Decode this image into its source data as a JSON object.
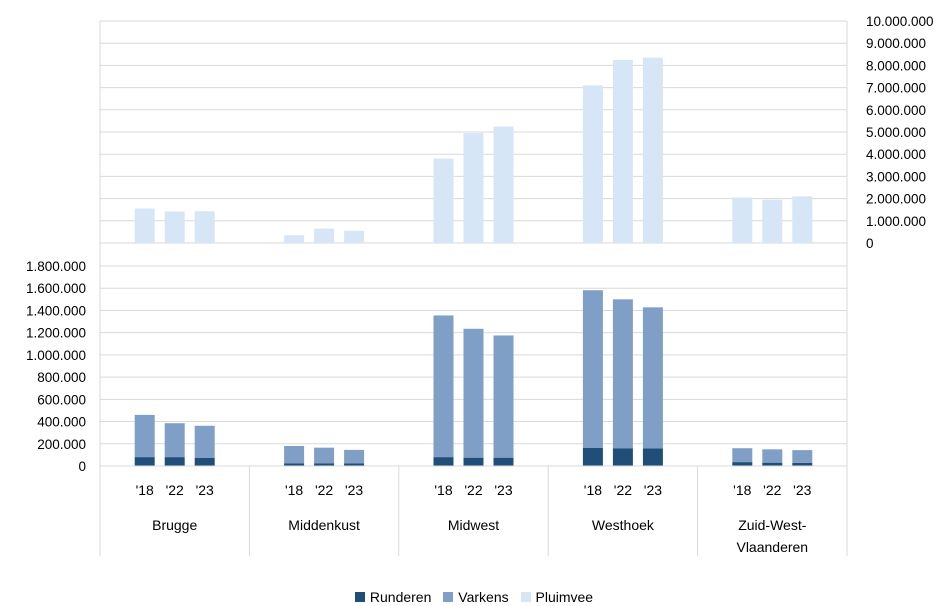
{
  "chart_data": {
    "type": "bar",
    "stacked": true,
    "groups": [
      "Brugge",
      "Middenkust",
      "Midwest",
      "Westhoek",
      "Zuid-West-Vlaanderen"
    ],
    "years": [
      "'18",
      "'22",
      "'23"
    ],
    "series": [
      {
        "name": "Runderen",
        "color": "#1F4E79",
        "axis": "left",
        "values": [
          [
            80000,
            80000,
            72000
          ],
          [
            25000,
            25000,
            23000
          ],
          [
            80000,
            75000,
            75000
          ],
          [
            162000,
            160000,
            158000
          ],
          [
            35000,
            30000,
            28000
          ]
        ]
      },
      {
        "name": "Varkens",
        "color": "#7F9FC7",
        "axis": "left",
        "values": [
          [
            380000,
            305000,
            290000
          ],
          [
            155000,
            140000,
            122000
          ],
          [
            1275000,
            1160000,
            1100000
          ],
          [
            1420000,
            1340000,
            1270000
          ],
          [
            125000,
            120000,
            115000
          ]
        ]
      },
      {
        "name": "Pluimvee",
        "color": "#D6E6F7",
        "axis": "right",
        "values": [
          [
            1550000,
            1420000,
            1430000
          ],
          [
            350000,
            650000,
            550000
          ],
          [
            3800000,
            4950000,
            5250000
          ],
          [
            7100000,
            8250000,
            8350000
          ],
          [
            2050000,
            1950000,
            2100000
          ]
        ]
      }
    ],
    "left_axis": {
      "ylim": [
        0,
        1800000
      ],
      "ticks": [
        "0",
        "200.000",
        "400.000",
        "600.000",
        "800.000",
        "1.000.000",
        "1.200.000",
        "1.400.000",
        "1.600.000",
        "1.800.000"
      ]
    },
    "right_axis": {
      "ylim": [
        0,
        10000000
      ],
      "ticks": [
        "0",
        "1.000.000",
        "2.000.000",
        "3.000.000",
        "4.000.000",
        "5.000.000",
        "6.000.000",
        "7.000.000",
        "8.000.000",
        "9.000.000",
        "10.000.000"
      ]
    },
    "category_labels": [
      "Brugge",
      "Middenkust",
      "Midwest",
      "Westhoek",
      "Zuid-West-\nVlaanderen"
    ],
    "grid": true,
    "legend_position": "bottom"
  },
  "legend": {
    "items": [
      {
        "label": "Runderen",
        "color": "#1F4E79"
      },
      {
        "label": "Varkens",
        "color": "#7F9FC7"
      },
      {
        "label": "Pluimvee",
        "color": "#D6E6F7"
      }
    ]
  }
}
